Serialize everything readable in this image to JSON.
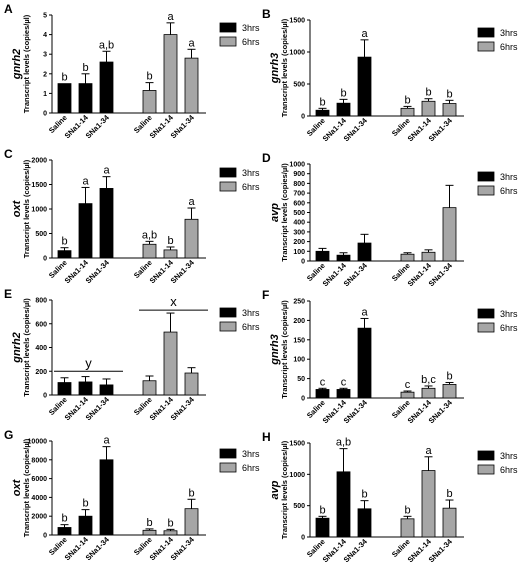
{
  "legend": {
    "labels": [
      "3hrs",
      "6hrs"
    ],
    "colors": [
      "#000000",
      "#a6a6a6"
    ]
  },
  "categories": [
    "Saline",
    "SNa1-14",
    "SNa1-34"
  ],
  "common_ylabel": "Transcript levels (copies/µl)",
  "chart_data": [
    {
      "panel": "A",
      "type": "bar",
      "gene": "gnrh2",
      "categories": [
        "Saline",
        "SNa1-14",
        "SNa1-34"
      ],
      "ylabel": "Transcript levels (copies/µl)",
      "ylim": [
        0,
        5
      ],
      "yticks": [
        0,
        1,
        2,
        3,
        4,
        5
      ],
      "series": [
        {
          "name": "3hrs",
          "values": [
            1.5,
            1.5,
            2.6
          ],
          "errors": [
            0,
            0.5,
            0.55
          ],
          "labels": [
            "b",
            "b",
            "a,b"
          ]
        },
        {
          "name": "6hrs",
          "values": [
            1.15,
            4.0,
            2.8
          ],
          "errors": [
            0.4,
            0.6,
            0.45
          ],
          "labels": [
            "b",
            "a",
            "a"
          ]
        }
      ],
      "annotations": []
    },
    {
      "panel": "B",
      "type": "bar",
      "gene": "gnrh3",
      "categories": [
        "Saline",
        "SNa1-14",
        "SNa1-34"
      ],
      "ylabel": "Transcript levels (copies/µl)",
      "ylim": [
        0,
        1500
      ],
      "yticks": [
        0,
        500,
        1000,
        1500
      ],
      "series": [
        {
          "name": "3hrs",
          "values": [
            90,
            200,
            920
          ],
          "errors": [
            30,
            60,
            270
          ],
          "labels": [
            "b",
            "b",
            "a"
          ]
        },
        {
          "name": "6hrs",
          "values": [
            120,
            230,
            195
          ],
          "errors": [
            30,
            40,
            50
          ],
          "labels": [
            "b",
            "b",
            "b"
          ]
        }
      ],
      "annotations": []
    },
    {
      "panel": "C",
      "type": "bar",
      "gene": "oxt",
      "categories": [
        "Saline",
        "SNa1-14",
        "SNa1-34"
      ],
      "ylabel": "Transcript levels (copies/µl)",
      "ylim": [
        0,
        2000
      ],
      "yticks": [
        0,
        500,
        1000,
        1500,
        2000
      ],
      "series": [
        {
          "name": "3hrs",
          "values": [
            150,
            1110,
            1420
          ],
          "errors": [
            60,
            330,
            240
          ],
          "labels": [
            "b",
            "a",
            "a"
          ]
        },
        {
          "name": "6hrs",
          "values": [
            280,
            165,
            790
          ],
          "errors": [
            60,
            60,
            230
          ],
          "labels": [
            "a,b",
            "b",
            "a"
          ]
        }
      ],
      "annotations": []
    },
    {
      "panel": "D",
      "type": "bar",
      "gene": "avp",
      "categories": [
        "Saline",
        "SNa1-14",
        "SNa1-34"
      ],
      "ylabel": "Transcript levels (copies/µl)",
      "ylim": [
        0,
        1000
      ],
      "yticks": [
        0,
        100,
        200,
        300,
        400,
        500,
        600,
        700,
        800,
        900,
        1000
      ],
      "series": [
        {
          "name": "3hrs",
          "values": [
            100,
            60,
            185
          ],
          "errors": [
            30,
            25,
            90
          ],
          "labels": []
        },
        {
          "name": "6hrs",
          "values": [
            70,
            90,
            550
          ],
          "errors": [
            15,
            25,
            230
          ],
          "labels": []
        }
      ],
      "annotations": []
    },
    {
      "panel": "E",
      "type": "bar",
      "gene": "gnrh2",
      "categories": [
        "Saline",
        "SNa1-14",
        "SNa1-34"
      ],
      "ylabel": "Transcript levels (copies/µl)",
      "ylim": [
        0,
        800
      ],
      "yticks": [
        0,
        200,
        400,
        600,
        800
      ],
      "series": [
        {
          "name": "3hrs",
          "values": [
            105,
            110,
            85
          ],
          "errors": [
            40,
            45,
            50
          ],
          "labels": []
        },
        {
          "name": "6hrs",
          "values": [
            120,
            530,
            185
          ],
          "errors": [
            40,
            160,
            45
          ],
          "labels": []
        }
      ],
      "annotations": [
        {
          "text": "y",
          "group": "3hrs",
          "level": 200
        },
        {
          "text": "x",
          "group": "6hrs",
          "level": 715
        }
      ]
    },
    {
      "panel": "F",
      "type": "bar",
      "gene": "gnrh3",
      "categories": [
        "Saline",
        "SNa1-14",
        "SNa1-34"
      ],
      "ylabel": "Transcript levels (copies/µl)",
      "ylim": [
        0,
        250
      ],
      "yticks": [
        0,
        50,
        100,
        150,
        200,
        250
      ],
      "series": [
        {
          "name": "3hrs",
          "values": [
            22,
            22,
            180
          ],
          "errors": [
            3,
            3,
            25
          ],
          "labels": [
            "c",
            "c",
            "a"
          ]
        },
        {
          "name": "6hrs",
          "values": [
            15,
            25,
            35
          ],
          "errors": [
            3,
            6,
            5
          ],
          "labels": [
            "c",
            "b,c",
            "b"
          ]
        }
      ],
      "annotations": []
    },
    {
      "panel": "G",
      "type": "bar",
      "gene": "oxt",
      "categories": [
        "Saline",
        "SNa1-14",
        "SNa1-34"
      ],
      "ylabel": "Transcript levels (copies/µl)",
      "ylim": [
        0,
        10000
      ],
      "yticks": [
        0,
        2000,
        4000,
        6000,
        8000,
        10000
      ],
      "series": [
        {
          "name": "3hrs",
          "values": [
            800,
            2000,
            8000
          ],
          "errors": [
            300,
            700,
            1400
          ],
          "labels": [
            "b",
            "b",
            "a"
          ]
        },
        {
          "name": "6hrs",
          "values": [
            500,
            450,
            2800
          ],
          "errors": [
            150,
            150,
            1000
          ],
          "labels": [
            "b",
            "b",
            "b"
          ]
        }
      ],
      "annotations": []
    },
    {
      "panel": "H",
      "type": "bar",
      "gene": "avp",
      "categories": [
        "Saline",
        "SNa1-14",
        "SNa1-34"
      ],
      "ylabel": "Transcript levels (copies/µl)",
      "ylim": [
        0,
        1500
      ],
      "yticks": [
        0,
        500,
        1000,
        1500
      ],
      "series": [
        {
          "name": "3hrs",
          "values": [
            300,
            1040,
            450
          ],
          "errors": [
            30,
            370,
            130
          ],
          "labels": [
            "b",
            "a,b",
            "b"
          ]
        },
        {
          "name": "6hrs",
          "values": [
            290,
            1060,
            460
          ],
          "errors": [
            40,
            220,
            130
          ],
          "labels": [
            "b",
            "a",
            "b"
          ]
        }
      ],
      "annotations": []
    }
  ]
}
